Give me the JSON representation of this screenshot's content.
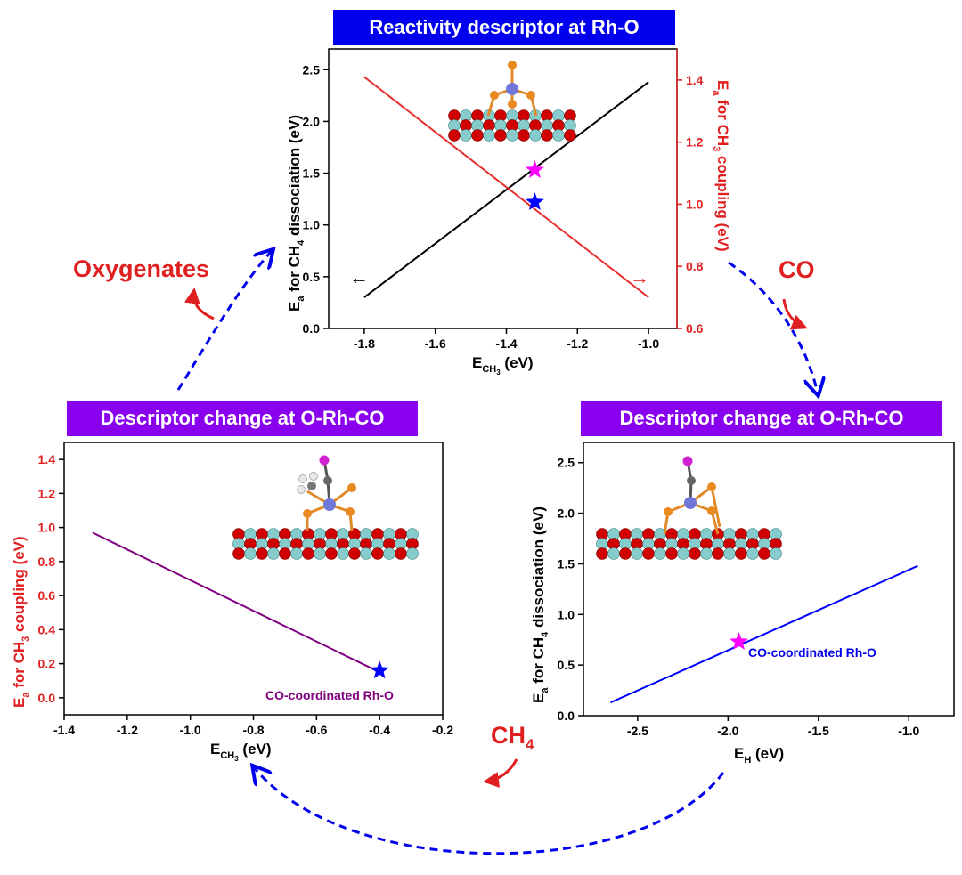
{
  "colors": {
    "accent_blue": "#0000ee",
    "accent_purple": "#8800ee",
    "red": "#ff0000",
    "purple_line": "#800080",
    "blue_line": "#0000ff",
    "magenta": "#ff00ff"
  },
  "banners": {
    "top": "Reactivity descriptor at Rh-O",
    "left": "Descriptor change at O-Rh-CO",
    "right": "Descriptor change at O-Rh-CO"
  },
  "labels": {
    "oxygenates": "Oxygenates",
    "co": "CO",
    "ch4_base": "CH",
    "ch4_sub": "4"
  },
  "chart_data": [
    {
      "id": "top",
      "type": "line",
      "title": "Reactivity descriptor at Rh-O",
      "xlabel": "E_CH3 (eV)",
      "ylabel": "Ea for CH4 dissociation (eV)",
      "y2label": "Ea for CH3 coupling (eV)",
      "xlim": [
        -1.9,
        -0.92
      ],
      "ylim": [
        0,
        2.7
      ],
      "y2lim": [
        0.6,
        1.5
      ],
      "xticks": [
        -1.8,
        -1.6,
        -1.4,
        -1.2,
        -1.0
      ],
      "yticks": [
        0.0,
        0.5,
        1.0,
        1.5,
        2.0,
        2.5
      ],
      "y2ticks": [
        0.6,
        0.8,
        1.0,
        1.2,
        1.4
      ],
      "series": [
        {
          "name": "Ea CH4 dissociation",
          "axis": "left",
          "color": "#000000",
          "x": [
            -1.8,
            -1.0
          ],
          "y": [
            0.3,
            2.38
          ]
        },
        {
          "name": "Ea CH3 coupling",
          "axis": "right",
          "color": "#e83030",
          "x": [
            -1.8,
            -1.0
          ],
          "y": [
            1.41,
            0.7
          ]
        }
      ],
      "markers": [
        {
          "name": "blue-star",
          "axis": "left",
          "x": -1.32,
          "y": 1.22,
          "color": "#0000ff"
        },
        {
          "name": "magenta-star",
          "axis": "right",
          "x": -1.32,
          "y": 1.11,
          "color": "#ff00ff"
        }
      ]
    },
    {
      "id": "left",
      "type": "line",
      "title": "Descriptor change at O-Rh-CO",
      "xlabel": "E_CH3 (eV)",
      "ylabel": "Ea for CH3 coupling (eV)",
      "xlim": [
        -1.4,
        -0.2
      ],
      "ylim": [
        -0.1,
        1.5
      ],
      "xticks": [
        -1.4,
        -1.2,
        -1.0,
        -0.8,
        -0.6,
        -0.4,
        -0.2
      ],
      "yticks": [
        0.0,
        0.2,
        0.4,
        0.6,
        0.8,
        1.0,
        1.2,
        1.4
      ],
      "series": [
        {
          "name": "Ea CH3 coupling",
          "color": "#800080",
          "x": [
            -1.31,
            -0.4
          ],
          "y": [
            0.97,
            0.15
          ]
        }
      ],
      "markers": [
        {
          "name": "blue-star",
          "x": -0.4,
          "y": 0.16,
          "color": "#0000ff"
        }
      ],
      "annotation": "CO-coordinated Rh-O"
    },
    {
      "id": "right",
      "type": "line",
      "title": "Descriptor change at O-Rh-CO",
      "xlabel": "E_H (eV)",
      "ylabel": "Ea for CH4 dissociation (eV)",
      "xlim": [
        -2.8,
        -0.75
      ],
      "ylim": [
        0,
        2.7
      ],
      "xticks": [
        -2.5,
        -2.0,
        -1.5,
        -1.0
      ],
      "yticks": [
        0.0,
        0.5,
        1.0,
        1.5,
        2.0,
        2.5
      ],
      "series": [
        {
          "name": "Ea CH4 dissociation",
          "color": "#0000ff",
          "x": [
            -2.65,
            -0.95
          ],
          "y": [
            0.13,
            1.48
          ]
        }
      ],
      "markers": [
        {
          "name": "magenta-star",
          "x": -1.94,
          "y": 0.73,
          "color": "#ff00ff"
        }
      ],
      "annotation": "CO-coordinated Rh-O"
    }
  ]
}
